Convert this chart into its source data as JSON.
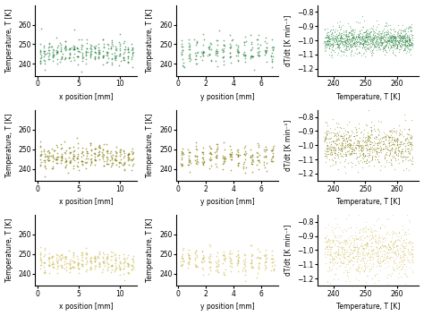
{
  "rows": [
    {
      "color": "#1a7a32",
      "alpha": 0.6
    },
    {
      "color": "#7d7a00",
      "alpha": 0.65
    },
    {
      "color": "#c8b440",
      "alpha": 0.55
    }
  ],
  "col0": {
    "xlabel": "x position [mm]",
    "ylabel": "Temperature, T [K]",
    "xlim": [
      -0.3,
      12.0
    ],
    "ylim": [
      234,
      270
    ],
    "xticks": [
      0,
      5,
      10
    ],
    "yticks": [
      240,
      250,
      260
    ]
  },
  "col1": {
    "xlabel": "y position [mm]",
    "ylabel": "Temperature, T [K]",
    "xlim": [
      -0.1,
      7.2
    ],
    "ylim": [
      234,
      270
    ],
    "xticks": [
      0,
      2,
      4,
      6
    ],
    "yticks": [
      240,
      250,
      260
    ]
  },
  "col2": {
    "xlabel": "Temperature, T [K]",
    "ylabel": "dT/dt [K min⁻¹]",
    "xlim": [
      235,
      267
    ],
    "ylim": [
      -1.25,
      -0.75
    ],
    "xticks": [
      240,
      250,
      260
    ],
    "yticks": [
      -1.2,
      -1.1,
      -1.0,
      -0.9,
      -0.8
    ]
  },
  "figsize": [
    4.74,
    3.53
  ],
  "dpi": 100
}
